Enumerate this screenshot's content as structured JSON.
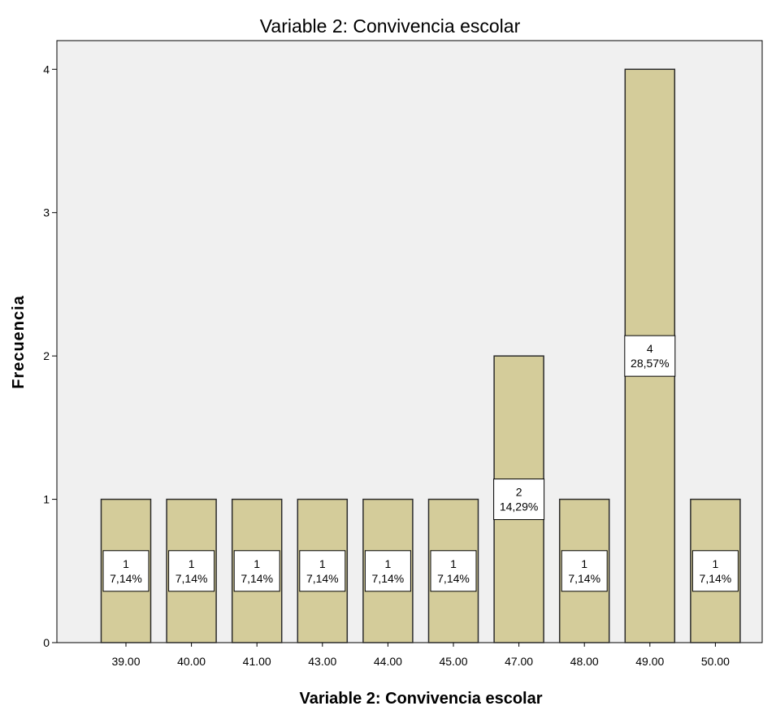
{
  "chart_data": {
    "type": "bar",
    "title": "Variable 2: Convivencia escolar",
    "xlabel": "Variable 2: Convivencia escolar",
    "ylabel": "Frecuencia",
    "categories": [
      "39.00",
      "40.00",
      "41.00",
      "43.00",
      "44.00",
      "45.00",
      "47.00",
      "48.00",
      "49.00",
      "50.00"
    ],
    "values": [
      1,
      1,
      1,
      1,
      1,
      1,
      2,
      1,
      4,
      1
    ],
    "data_labels": [
      {
        "count": "1",
        "percent": "7,14%"
      },
      {
        "count": "1",
        "percent": "7,14%"
      },
      {
        "count": "1",
        "percent": "7,14%"
      },
      {
        "count": "1",
        "percent": "7,14%"
      },
      {
        "count": "1",
        "percent": "7,14%"
      },
      {
        "count": "1",
        "percent": "7,14%"
      },
      {
        "count": "2",
        "percent": "14,29%"
      },
      {
        "count": "1",
        "percent": "7,14%"
      },
      {
        "count": "4",
        "percent": "28,57%"
      },
      {
        "count": "1",
        "percent": "7,14%"
      }
    ],
    "y_ticks": [
      "0",
      "1",
      "2",
      "3",
      "4"
    ],
    "ylim": [
      0,
      4.2
    ],
    "grid": false,
    "legend": "none",
    "colors": {
      "bar_fill": "#d4cc9a",
      "bar_stroke": "#2b2b2b",
      "plot_background": "#f0f0f0",
      "label_box": "#ffffff"
    }
  }
}
